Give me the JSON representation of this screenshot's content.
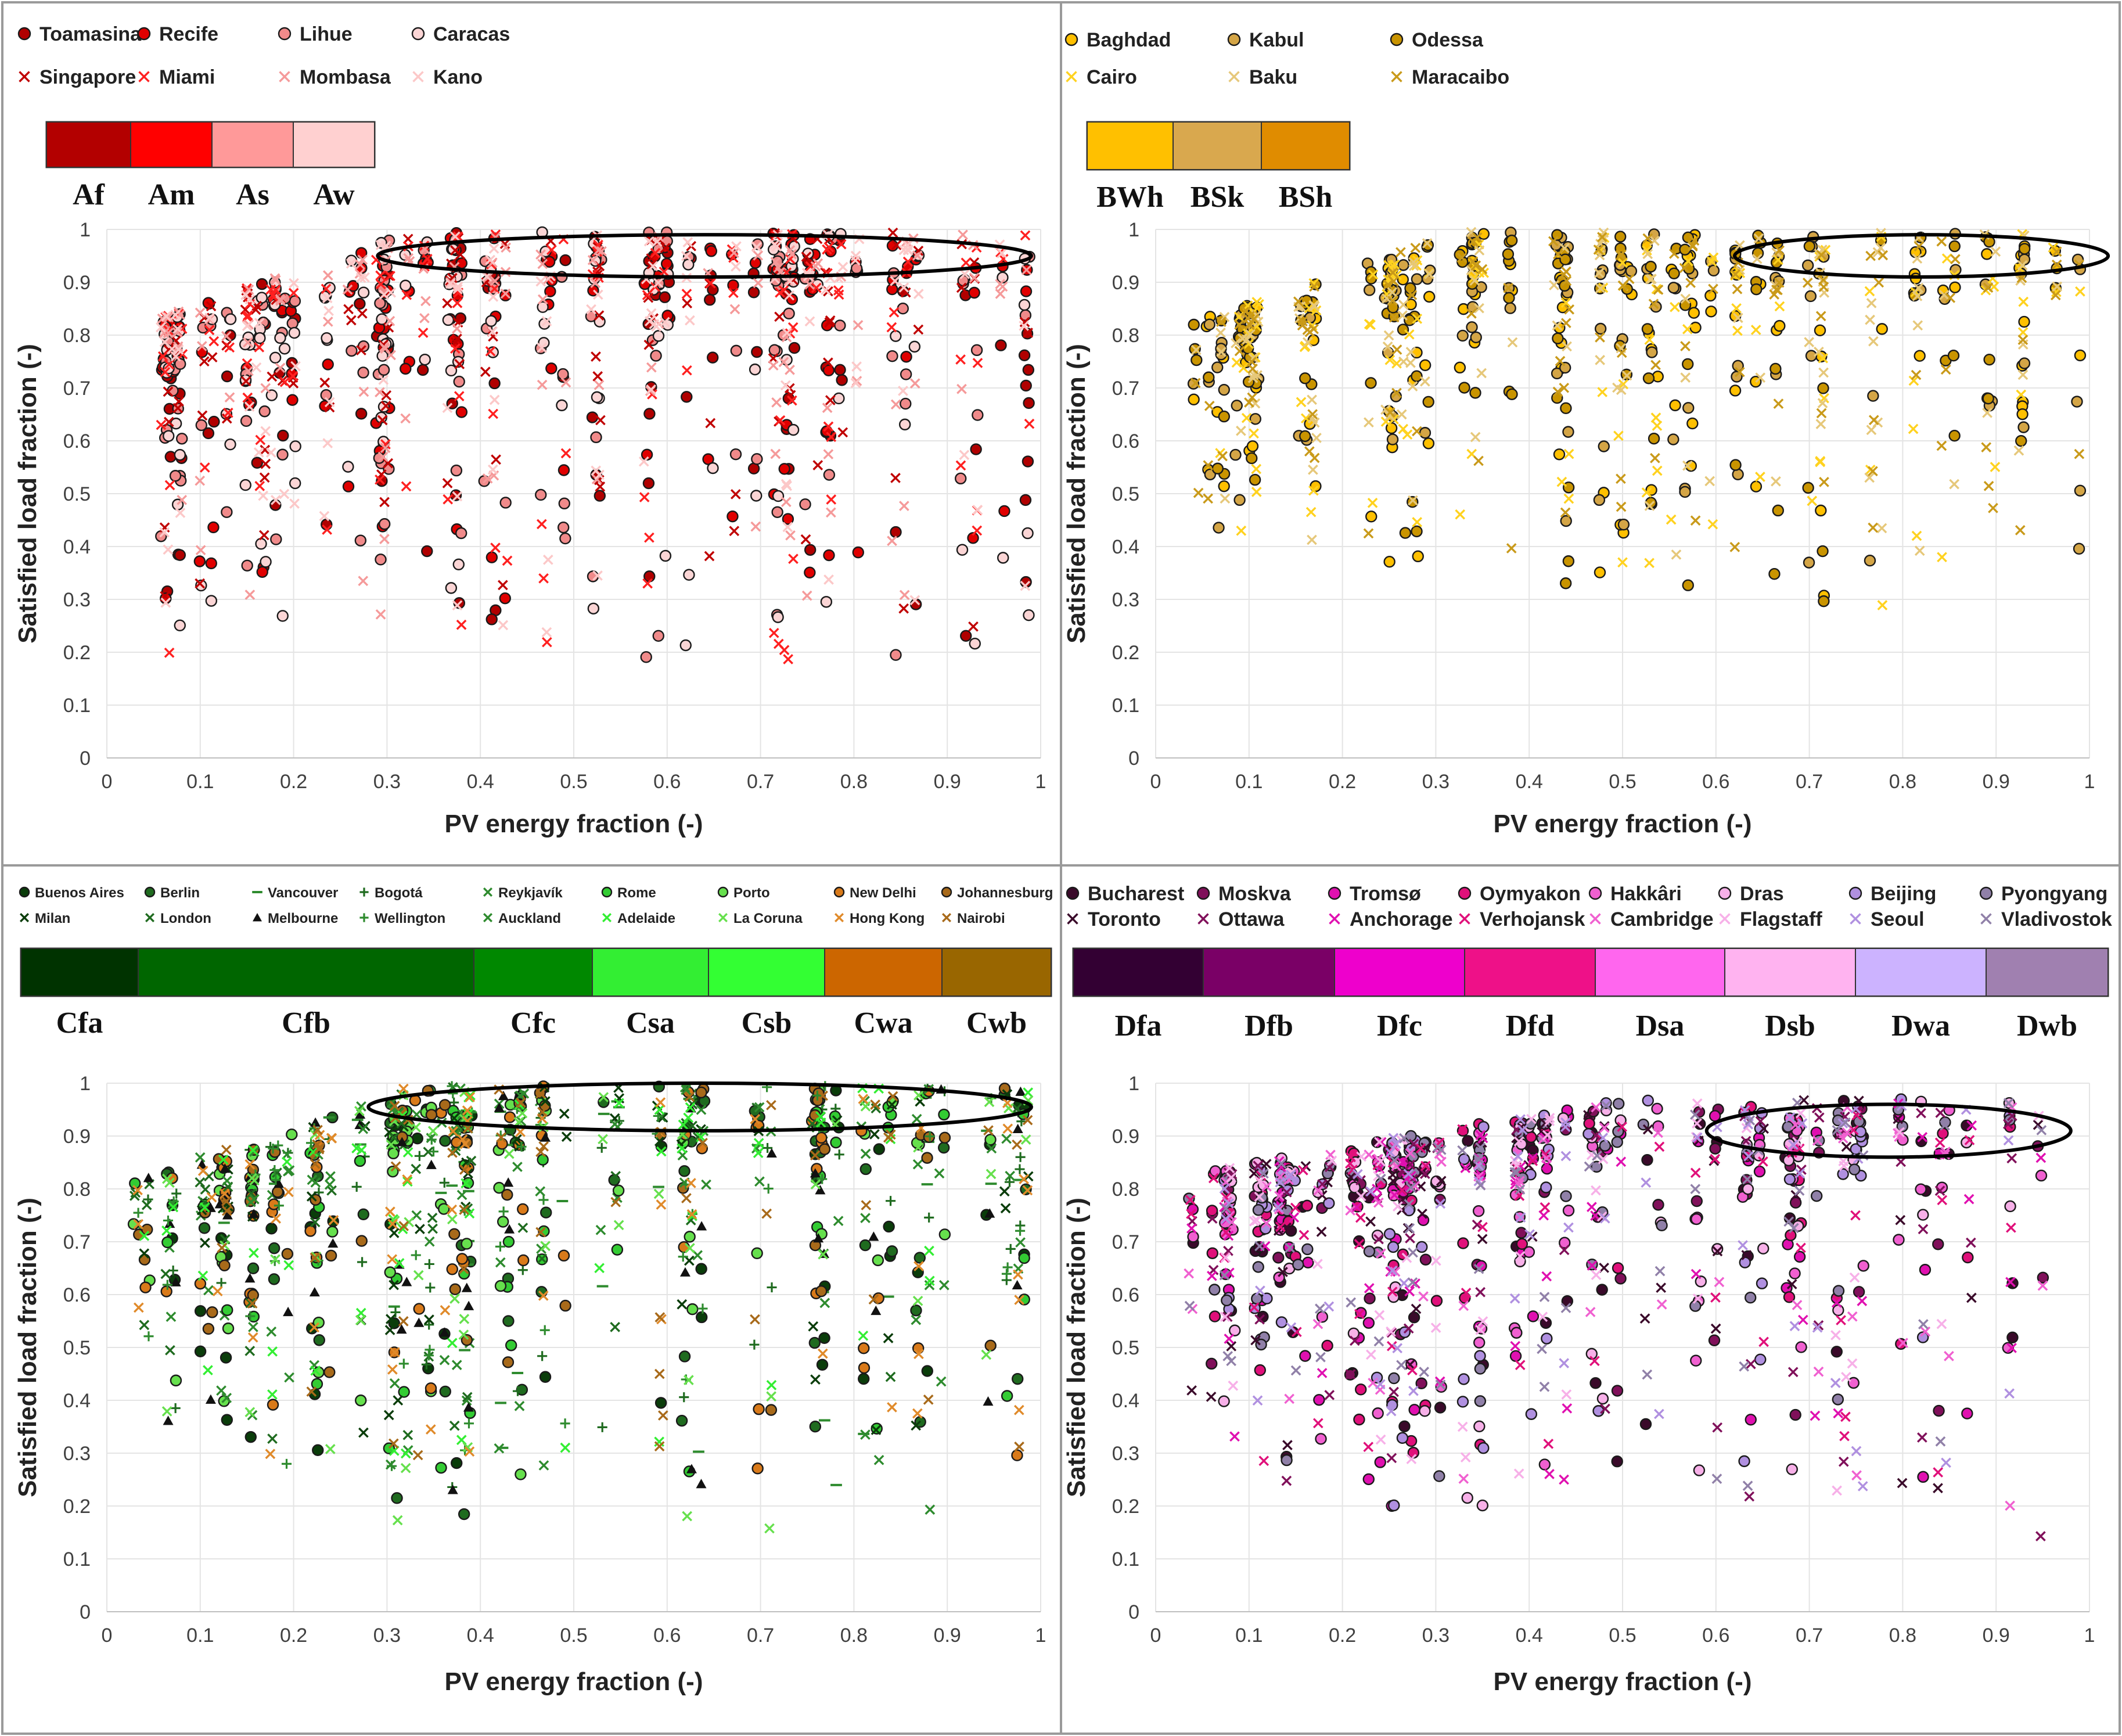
{
  "chart_data": [
    {
      "type": "scatter",
      "id": "A",
      "xlabel": "PV energy fraction (-)",
      "ylabel": "Satisfied load fraction (-)",
      "xlim": [
        0,
        1
      ],
      "ylim": [
        0,
        1
      ],
      "xticks": [
        "0",
        "0.1",
        "0.2",
        "0.3",
        "0.4",
        "0.5",
        "0.6",
        "0.7",
        "0.8",
        "0.9",
        "1"
      ],
      "yticks": [
        "0",
        "0.1",
        "0.2",
        "0.3",
        "0.4",
        "0.5",
        "0.6",
        "0.7",
        "0.8",
        "0.9",
        "1"
      ],
      "grid": true,
      "series": [
        {
          "name": "Toamasina",
          "marker": "circle",
          "color": "#b00000"
        },
        {
          "name": "Recife",
          "marker": "circle",
          "color": "#e00000"
        },
        {
          "name": "Lihue",
          "marker": "circle",
          "color": "#f08a8a"
        },
        {
          "name": "Caracas",
          "marker": "circle",
          "color": "#fbd5d5"
        },
        {
          "name": "Singapore",
          "marker": "cross",
          "color": "#c00000"
        },
        {
          "name": "Miami",
          "marker": "cross",
          "color": "#ff2020"
        },
        {
          "name": "Mombasa",
          "marker": "cross",
          "color": "#f59a9a"
        },
        {
          "name": "Kano",
          "marker": "cross",
          "color": "#fcc8c8"
        }
      ],
      "zones": [
        {
          "label": "Af",
          "color": "#b30000"
        },
        {
          "label": "Am",
          "color": "#ff0000"
        },
        {
          "label": "As",
          "color": "#ff9999"
        },
        {
          "label": "Aw",
          "color": "#ffd0d0"
        }
      ],
      "highlight_ellipse": {
        "x_range": [
          0.29,
          0.99
        ],
        "y_range": [
          0.91,
          0.99
        ]
      }
    },
    {
      "type": "scatter",
      "id": "B",
      "xlabel": "PV energy fraction (-)",
      "ylabel": "Satisfied load fraction (-)",
      "xlim": [
        0,
        1
      ],
      "ylim": [
        0,
        1
      ],
      "xticks": [
        "0",
        "0.1",
        "0.2",
        "0.3",
        "0.4",
        "0.5",
        "0.6",
        "0.7",
        "0.8",
        "0.9",
        "1"
      ],
      "yticks": [
        "0",
        "0.1",
        "0.2",
        "0.3",
        "0.4",
        "0.5",
        "0.6",
        "0.7",
        "0.8",
        "0.9",
        "1"
      ],
      "grid": true,
      "series": [
        {
          "name": "Baghdad",
          "marker": "circle",
          "color": "#ffc000"
        },
        {
          "name": "Kabul",
          "marker": "circle",
          "color": "#d4a546"
        },
        {
          "name": "Odessa",
          "marker": "circle",
          "color": "#c99400"
        },
        {
          "name": "Cairo",
          "marker": "cross",
          "color": "#ffd21f"
        },
        {
          "name": "Baku",
          "marker": "cross",
          "color": "#e6c87a"
        },
        {
          "name": "Maracaibo",
          "marker": "cross",
          "color": "#c99a1a"
        }
      ],
      "zones": [
        {
          "label": "BWh",
          "color": "#ffc000"
        },
        {
          "label": "BSk",
          "color": "#d9a84e"
        },
        {
          "label": "BSh",
          "color": "#e08c00"
        }
      ],
      "highlight_ellipse": {
        "x_range": [
          0.62,
          1.02
        ],
        "y_range": [
          0.91,
          0.99
        ]
      }
    },
    {
      "type": "scatter",
      "id": "C",
      "xlabel": "PV energy fraction (-)",
      "ylabel": "Satisfied load fraction (-)",
      "xlim": [
        0,
        1
      ],
      "ylim": [
        0,
        1
      ],
      "xticks": [
        "0",
        "0.1",
        "0.2",
        "0.3",
        "0.4",
        "0.5",
        "0.6",
        "0.7",
        "0.8",
        "0.9",
        "1"
      ],
      "yticks": [
        "0",
        "0.1",
        "0.2",
        "0.3",
        "0.4",
        "0.5",
        "0.6",
        "0.7",
        "0.8",
        "0.9",
        "1"
      ],
      "grid": true,
      "series": [
        {
          "name": "Buenos Aires",
          "marker": "circle",
          "color": "#0a3d0a"
        },
        {
          "name": "Berlin",
          "marker": "circle",
          "color": "#1f6b1f"
        },
        {
          "name": "Vancouver",
          "marker": "dash",
          "color": "#2e8b2e"
        },
        {
          "name": "Bogotá",
          "marker": "plus",
          "color": "#1f6b1f"
        },
        {
          "name": "Reykjavík",
          "marker": "cross",
          "color": "#2e8b2e"
        },
        {
          "name": "Rome",
          "marker": "circle",
          "color": "#33cc33"
        },
        {
          "name": "Porto",
          "marker": "circle",
          "color": "#66e04d"
        },
        {
          "name": "New Delhi",
          "marker": "circle",
          "color": "#d97a1a"
        },
        {
          "name": "Johannesburg",
          "marker": "circle",
          "color": "#a86a1a"
        },
        {
          "name": "Milan",
          "marker": "cross",
          "color": "#0a3d0a"
        },
        {
          "name": "London",
          "marker": "cross",
          "color": "#1f6b1f"
        },
        {
          "name": "Melbourne",
          "marker": "triangle",
          "color": "#111111"
        },
        {
          "name": "Wellington",
          "marker": "plus",
          "color": "#2e8b2e"
        },
        {
          "name": "Auckland",
          "marker": "cross",
          "color": "#2e8b2e"
        },
        {
          "name": "Adelaide",
          "marker": "cross",
          "color": "#33ee33"
        },
        {
          "name": "La Coruna",
          "marker": "cross",
          "color": "#66e04d"
        },
        {
          "name": "Hong Kong",
          "marker": "cross",
          "color": "#e08a2a"
        },
        {
          "name": "Nairobi",
          "marker": "cross",
          "color": "#a86a1a"
        }
      ],
      "zones": [
        {
          "label": "Cfa",
          "color": "#003300"
        },
        {
          "label": "Cfb",
          "color": "#006600"
        },
        {
          "label": "Cfc",
          "color": "#008800"
        },
        {
          "label": "Csa",
          "color": "#33ee33"
        },
        {
          "label": "Csb",
          "color": "#33ff33"
        },
        {
          "label": "Cwa",
          "color": "#cc6600"
        },
        {
          "label": "Cwb",
          "color": "#996600"
        }
      ],
      "highlight_ellipse": {
        "x_range": [
          0.28,
          0.99
        ],
        "y_range": [
          0.91,
          1.0
        ]
      }
    },
    {
      "type": "scatter",
      "id": "D",
      "xlabel": "PV energy fraction (-)",
      "ylabel": "Satisfied load fraction (-)",
      "xlim": [
        0,
        1
      ],
      "ylim": [
        0,
        1
      ],
      "xticks": [
        "0",
        "0.1",
        "0.2",
        "0.3",
        "0.4",
        "0.5",
        "0.6",
        "0.7",
        "0.8",
        "0.9",
        "1"
      ],
      "yticks": [
        "0",
        "0.1",
        "0.2",
        "0.3",
        "0.4",
        "0.5",
        "0.6",
        "0.7",
        "0.8",
        "0.9",
        "1"
      ],
      "grid": true,
      "series": [
        {
          "name": "Bucharest",
          "marker": "circle",
          "color": "#3a0a2a"
        },
        {
          "name": "Moskva",
          "marker": "circle",
          "color": "#80105a"
        },
        {
          "name": "Tromsø",
          "marker": "circle",
          "color": "#e010b0"
        },
        {
          "name": "Oymyakon",
          "marker": "circle",
          "color": "#e0107a"
        },
        {
          "name": "Hakkâri",
          "marker": "circle",
          "color": "#f060d0"
        },
        {
          "name": "Dras",
          "marker": "circle",
          "color": "#f7b0e8"
        },
        {
          "name": "Beijing",
          "marker": "circle",
          "color": "#b090e0"
        },
        {
          "name": "Pyongyang",
          "marker": "circle",
          "color": "#9080a8"
        },
        {
          "name": "Toronto",
          "marker": "cross",
          "color": "#3a0a2a"
        },
        {
          "name": "Ottawa",
          "marker": "cross",
          "color": "#80105a"
        },
        {
          "name": "Anchorage",
          "marker": "cross",
          "color": "#e010b0"
        },
        {
          "name": "Verhojansk",
          "marker": "cross",
          "color": "#e0107a"
        },
        {
          "name": "Cambridge",
          "marker": "cross",
          "color": "#f060d0"
        },
        {
          "name": "Flagstaff",
          "marker": "cross",
          "color": "#f7b0e8"
        },
        {
          "name": "Seoul",
          "marker": "cross",
          "color": "#b090e0"
        },
        {
          "name": "Vladivostok",
          "marker": "cross",
          "color": "#9080a8"
        }
      ],
      "zones": [
        {
          "label": "Dfa",
          "color": "#330033"
        },
        {
          "label": "Dfb",
          "color": "#7a0066"
        },
        {
          "label": "Dfc",
          "color": "#ee00cc"
        },
        {
          "label": "Dfd",
          "color": "#ee1188"
        },
        {
          "label": "Dsa",
          "color": "#ff66ee"
        },
        {
          "label": "Dsb",
          "color": "#ffb3f0"
        },
        {
          "label": "Dwa",
          "color": "#ccb3ff"
        },
        {
          "label": "Dwb",
          "color": "#a080b0"
        }
      ],
      "highlight_ellipse": {
        "x_range": [
          0.59,
          0.98
        ],
        "y_range": [
          0.86,
          0.96
        ]
      }
    }
  ]
}
